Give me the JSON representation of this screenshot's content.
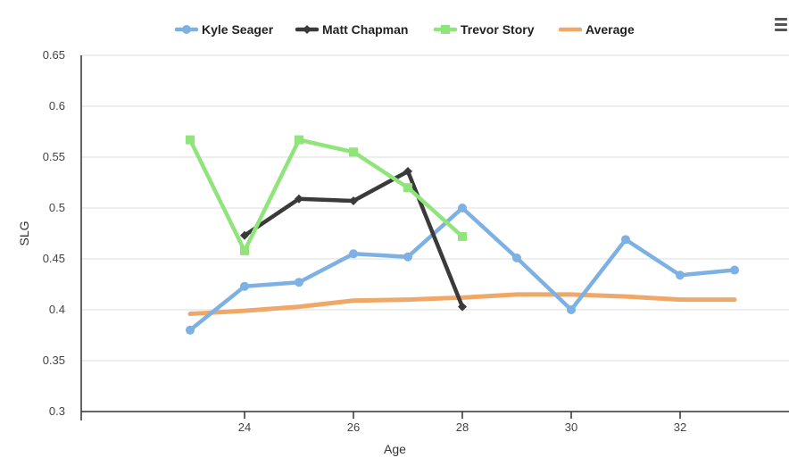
{
  "chart_data": {
    "type": "line",
    "title": "",
    "xlabel": "Age",
    "ylabel": "SLG",
    "xlim": [
      21,
      34
    ],
    "ylim": [
      0.3,
      0.65
    ],
    "x_ticks": [
      24,
      26,
      28,
      30,
      32
    ],
    "y_ticks": [
      0.3,
      0.35,
      0.4,
      0.45,
      0.5,
      0.55,
      0.6,
      0.65
    ],
    "grid": "horizontal",
    "legend_position": "top",
    "series": [
      {
        "name": "Kyle Seager",
        "color": "#7eb1e3",
        "marker": "circle",
        "points": [
          [
            23,
            0.38
          ],
          [
            24,
            0.423
          ],
          [
            25,
            0.427
          ],
          [
            26,
            0.455
          ],
          [
            27,
            0.452
          ],
          [
            28,
            0.5
          ],
          [
            29,
            0.451
          ],
          [
            30,
            0.4
          ],
          [
            31,
            0.469
          ],
          [
            32,
            0.434
          ],
          [
            33,
            0.439
          ]
        ]
      },
      {
        "name": "Matt Chapman",
        "color": "#3a3a3a",
        "marker": "diamond",
        "points": [
          [
            24,
            0.473
          ],
          [
            25,
            0.509
          ],
          [
            26,
            0.507
          ],
          [
            27,
            0.536
          ],
          [
            28,
            0.403
          ]
        ]
      },
      {
        "name": "Trevor Story",
        "color": "#8fe57a",
        "marker": "square",
        "points": [
          [
            23,
            0.567
          ],
          [
            24,
            0.458
          ],
          [
            25,
            0.567
          ],
          [
            26,
            0.555
          ],
          [
            27,
            0.52
          ],
          [
            28,
            0.472
          ]
        ]
      },
      {
        "name": "Average",
        "color": "#f0a868",
        "marker": "none",
        "points": [
          [
            23,
            0.396
          ],
          [
            24,
            0.399
          ],
          [
            25,
            0.403
          ],
          [
            26,
            0.409
          ],
          [
            27,
            0.41
          ],
          [
            28,
            0.412
          ],
          [
            29,
            0.415
          ],
          [
            30,
            0.415
          ],
          [
            31,
            0.413
          ],
          [
            32,
            0.41
          ],
          [
            33,
            0.41
          ]
        ]
      }
    ]
  },
  "toolbar": {
    "menu_icon": "hamburger-menu-icon"
  }
}
